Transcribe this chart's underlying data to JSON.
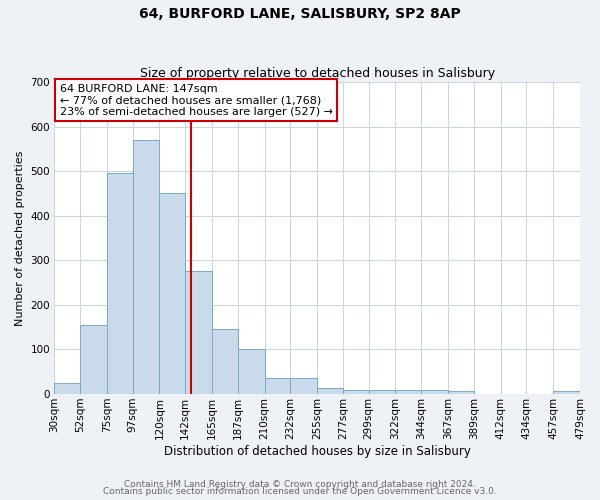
{
  "title": "64, BURFORD LANE, SALISBURY, SP2 8AP",
  "subtitle": "Size of property relative to detached houses in Salisbury",
  "xlabel": "Distribution of detached houses by size in Salisbury",
  "ylabel": "Number of detached properties",
  "bar_left_edges": [
    30,
    52,
    75,
    97,
    120,
    142,
    165,
    187,
    210,
    232,
    255,
    277,
    299,
    322,
    344,
    367,
    389,
    412,
    434,
    457
  ],
  "bar_heights": [
    25,
    155,
    495,
    570,
    450,
    275,
    145,
    100,
    37,
    37,
    14,
    10,
    10,
    10,
    10,
    7,
    0,
    0,
    0,
    7
  ],
  "bar_color": "#c9daea",
  "bar_edge_color": "#7aaac8",
  "vline_x": 147,
  "vline_color": "#cc0000",
  "ylim": [
    0,
    700
  ],
  "yticks": [
    0,
    100,
    200,
    300,
    400,
    500,
    600,
    700
  ],
  "xtick_labels": [
    "30sqm",
    "52sqm",
    "75sqm",
    "97sqm",
    "120sqm",
    "142sqm",
    "165sqm",
    "187sqm",
    "210sqm",
    "232sqm",
    "255sqm",
    "277sqm",
    "299sqm",
    "322sqm",
    "344sqm",
    "367sqm",
    "389sqm",
    "412sqm",
    "434sqm",
    "457sqm",
    "479sqm"
  ],
  "annotation_title": "64 BURFORD LANE: 147sqm",
  "annotation_line1": "← 77% of detached houses are smaller (1,768)",
  "annotation_line2": "23% of semi-detached houses are larger (527) →",
  "annotation_box_color": "#ffffff",
  "annotation_box_edge_color": "#cc0000",
  "footer1": "Contains HM Land Registry data © Crown copyright and database right 2024.",
  "footer2": "Contains public sector information licensed under the Open Government Licence v3.0.",
  "bg_color": "#eef2f7",
  "plot_bg_color": "#ffffff",
  "grid_color": "#c5d0dc",
  "title_fontsize": 10,
  "subtitle_fontsize": 9,
  "ylabel_fontsize": 8,
  "xlabel_fontsize": 8.5,
  "tick_fontsize": 7.5,
  "annotation_fontsize": 8,
  "footer_fontsize": 6.5
}
